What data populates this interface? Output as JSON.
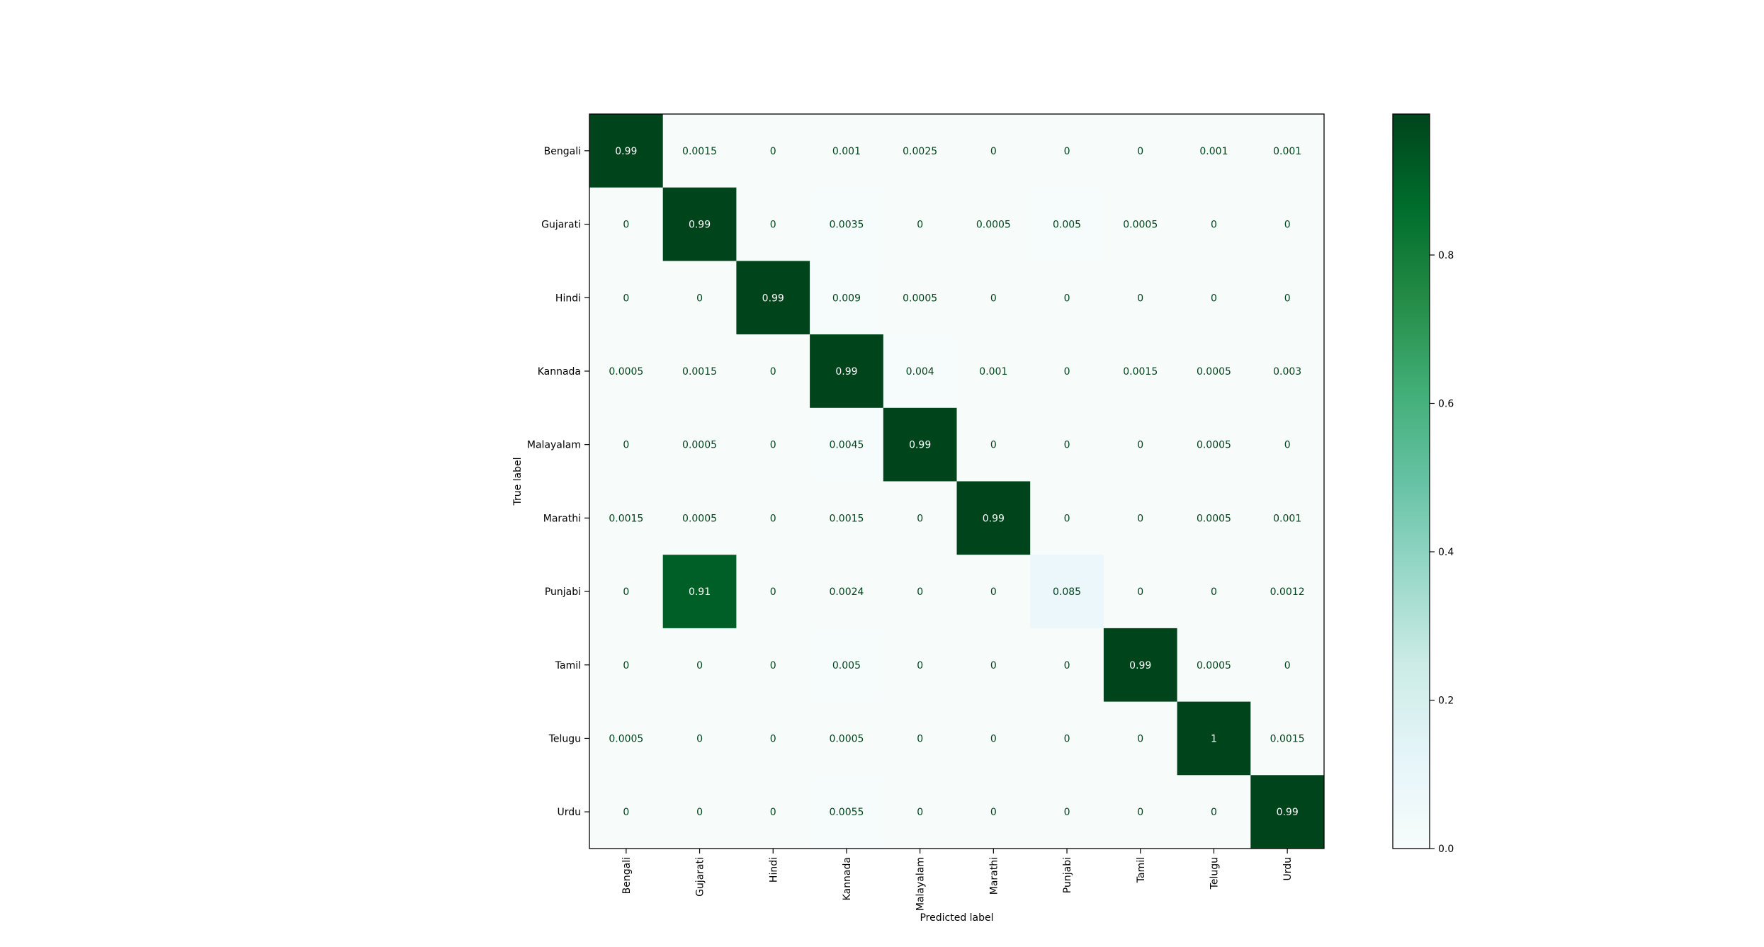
{
  "chart_data": {
    "type": "heatmap",
    "title": "",
    "xlabel": "Predicted label",
    "ylabel": "True label",
    "categories": [
      "Bengali",
      "Gujarati",
      "Hindi",
      "Kannada",
      "Malayalam",
      "Marathi",
      "Punjabi",
      "Tamil",
      "Telugu",
      "Urdu"
    ],
    "matrix": [
      [
        "0.99",
        "0.0015",
        "0",
        "0.001",
        "0.0025",
        "0",
        "0",
        "0",
        "0.001",
        "0.001"
      ],
      [
        "0",
        "0.99",
        "0",
        "0.0035",
        "0",
        "0.0005",
        "0.005",
        "0.0005",
        "0",
        "0"
      ],
      [
        "0",
        "0",
        "0.99",
        "0.009",
        "0.0005",
        "0",
        "0",
        "0",
        "0",
        "0"
      ],
      [
        "0.0005",
        "0.0015",
        "0",
        "0.99",
        "0.004",
        "0.001",
        "0",
        "0.0015",
        "0.0005",
        "0.003"
      ],
      [
        "0",
        "0.0005",
        "0",
        "0.0045",
        "0.99",
        "0",
        "0",
        "0",
        "0.0005",
        "0"
      ],
      [
        "0.0015",
        "0.0005",
        "0",
        "0.0015",
        "0",
        "0.99",
        "0",
        "0",
        "0.0005",
        "0.001"
      ],
      [
        "0",
        "0.91",
        "0",
        "0.0024",
        "0",
        "0",
        "0.085",
        "0",
        "0",
        "0.0012"
      ],
      [
        "0",
        "0",
        "0",
        "0.005",
        "0",
        "0",
        "0",
        "0.99",
        "0.0005",
        "0"
      ],
      [
        "0.0005",
        "0",
        "0",
        "0.0005",
        "0",
        "0",
        "0",
        "0",
        "1",
        "0.0015"
      ],
      [
        "0",
        "0",
        "0",
        "0.0055",
        "0",
        "0",
        "0",
        "0",
        "0",
        "0.99"
      ]
    ],
    "colorbar": {
      "min": 0.0,
      "max": 0.99,
      "ticks": [
        "0.0",
        "0.2",
        "0.4",
        "0.6",
        "0.8"
      ],
      "colormap": "Greens",
      "colors": [
        "#f7fcfb",
        "#e5f5f9",
        "#ccece6",
        "#99d8c9",
        "#66c2a4",
        "#41ae76",
        "#238b45",
        "#006d2c",
        "#00441b"
      ]
    },
    "grid": false,
    "legend": "colorbar right"
  }
}
